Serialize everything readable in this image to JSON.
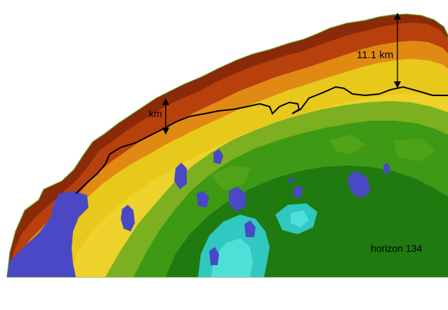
{
  "annotations": {
    "thickness_right": "11.1 km",
    "thickness_left": "km",
    "horizon_label": "horizon 134"
  },
  "colors": {
    "background": "#ffffff",
    "crust_dark": "#8a2a08",
    "crust_mid": "#b8400c",
    "orange": "#e08a14",
    "yellow": "#e8c81a",
    "light_yellow": "#ecd22a",
    "green_light": "#7cb020",
    "green_mid": "#3e9a14",
    "green_dark": "#1f7a10",
    "cyan": "#30c8c0",
    "cyan_light": "#4ee0d8",
    "lakes": "#4a48c4",
    "outline": "#6aa83a",
    "boundary_line": "#000000"
  },
  "legend": {
    "visible": false
  }
}
